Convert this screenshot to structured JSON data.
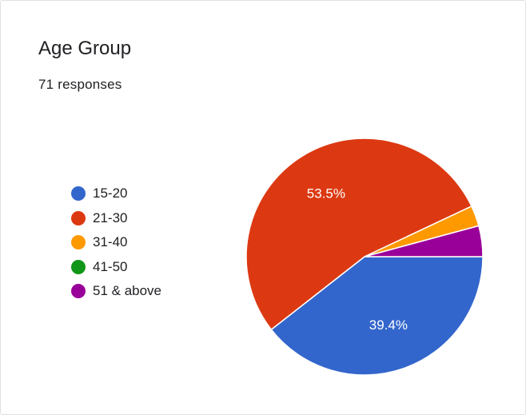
{
  "chart_data": {
    "type": "pie",
    "title": "Age Group",
    "subtitle": "71 responses",
    "legend_position": "left",
    "slices": [
      {
        "label": "15-20",
        "value": 39.4,
        "color": "#3366cc",
        "display": "39.4%"
      },
      {
        "label": "21-30",
        "value": 53.5,
        "color": "#dc3912",
        "display": "53.5%"
      },
      {
        "label": "31-40",
        "value": 2.8,
        "color": "#ff9900",
        "display": ""
      },
      {
        "label": "41-50",
        "value": 0,
        "color": "#109618",
        "display": ""
      },
      {
        "label": "51 & above",
        "value": 4.2,
        "color": "#990099",
        "display": ""
      }
    ]
  }
}
